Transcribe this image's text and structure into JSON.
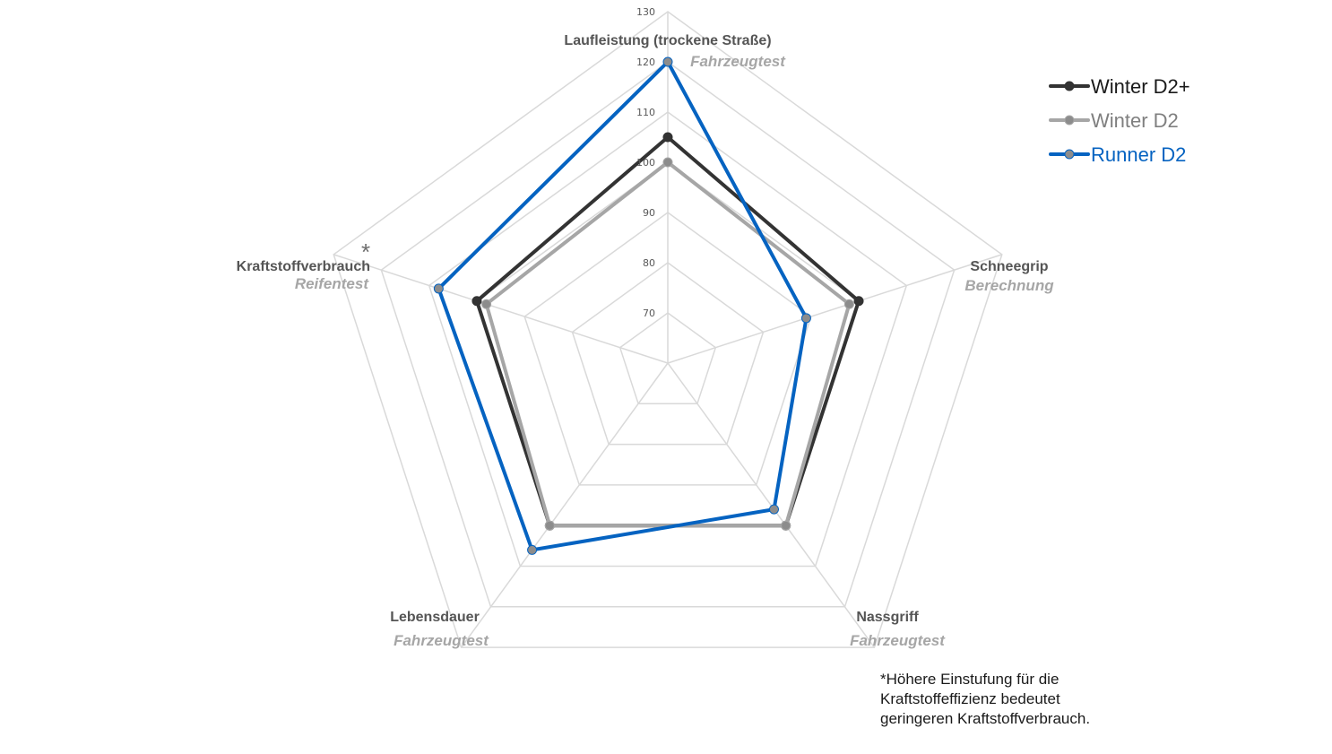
{
  "chart_data": {
    "type": "radar",
    "ticks": [
      70,
      80,
      90,
      100,
      110,
      120,
      130
    ],
    "rmin": 60,
    "rmax": 130,
    "axes": [
      {
        "title": "Laufleistung (trockene Straße)",
        "subtitle": "Fahrzeugtest",
        "asterisk": ""
      },
      {
        "title": "Schneegrip",
        "subtitle": "Berechnung",
        "asterisk": ""
      },
      {
        "title": "Nassgriff",
        "subtitle": "Fahrzeugtest",
        "asterisk": ""
      },
      {
        "title": "Lebensdauer",
        "subtitle": "Fahrzeugtest",
        "asterisk": ""
      },
      {
        "title": "Kraftstoffverbrauch",
        "subtitle": "Reifentest",
        "asterisk": "*"
      }
    ],
    "series": [
      {
        "name": "Winter D2+",
        "values": [
          105,
          100,
          100,
          100,
          100
        ],
        "color": "#333333",
        "marker": "#333333",
        "text_color": "#1a1a1a"
      },
      {
        "name": "Winter D2",
        "values": [
          100,
          98,
          100,
          100,
          98
        ],
        "color": "#a6a6a6",
        "marker": "#8c8c8c",
        "text_color": "#7f7f7f"
      },
      {
        "name": "Runner D2",
        "values": [
          120,
          89,
          96,
          106,
          108
        ],
        "color": "#0563c1",
        "marker": "#8c8c8c",
        "text_color": "#0563c1"
      }
    ],
    "grid_color": "#d9d9d9"
  },
  "footnote": {
    "lines": [
      "*Höhere Einstufung für die",
      "Kraftstoffeffizienz bedeutet",
      "geringeren Kraftstoffverbrauch."
    ]
  }
}
